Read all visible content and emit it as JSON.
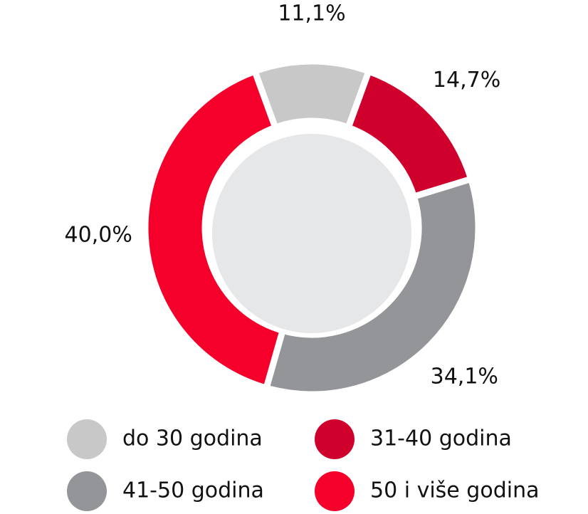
{
  "chart_data": {
    "type": "pie",
    "categories": [
      "do 30 godina",
      "31-40 godina",
      "41-50 godina",
      "50 i više godina"
    ],
    "values": [
      11.1,
      14.7,
      34.1,
      40.0
    ],
    "value_labels": [
      "11,1%",
      "14,7%",
      "34,1%",
      "40,0%"
    ],
    "colors": [
      "#c8c8c8",
      "#d0002c",
      "#939598",
      "#f5002a"
    ],
    "donut": true
  }
}
